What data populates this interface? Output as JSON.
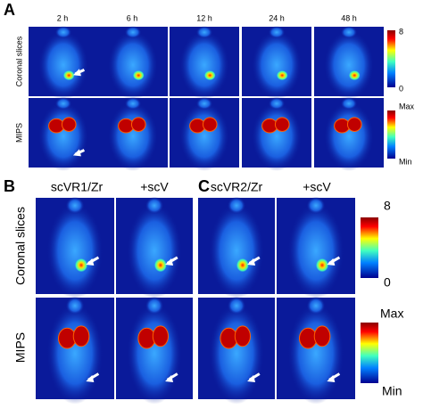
{
  "panel_a": {
    "label": "A",
    "time_points": [
      "2 h",
      "6 h",
      "12 h",
      "24 h",
      "48 h"
    ],
    "row_labels": [
      "Coronal slices",
      "MIPS"
    ],
    "colorbars": [
      {
        "max": "8",
        "min": "0"
      },
      {
        "max": "Max",
        "min": "Min"
      }
    ]
  },
  "panel_b": {
    "label": "B",
    "columns": [
      "scVR1/Zr",
      "+scV"
    ]
  },
  "panel_c": {
    "label": "C",
    "columns": [
      "scVR2/Zr",
      "+scV"
    ]
  },
  "panels_bc": {
    "row_labels": [
      "Coronal slices",
      "MIPS"
    ],
    "colorbars": [
      {
        "max": "8",
        "min": "0"
      },
      {
        "max": "Max",
        "min": "Min"
      }
    ]
  }
}
